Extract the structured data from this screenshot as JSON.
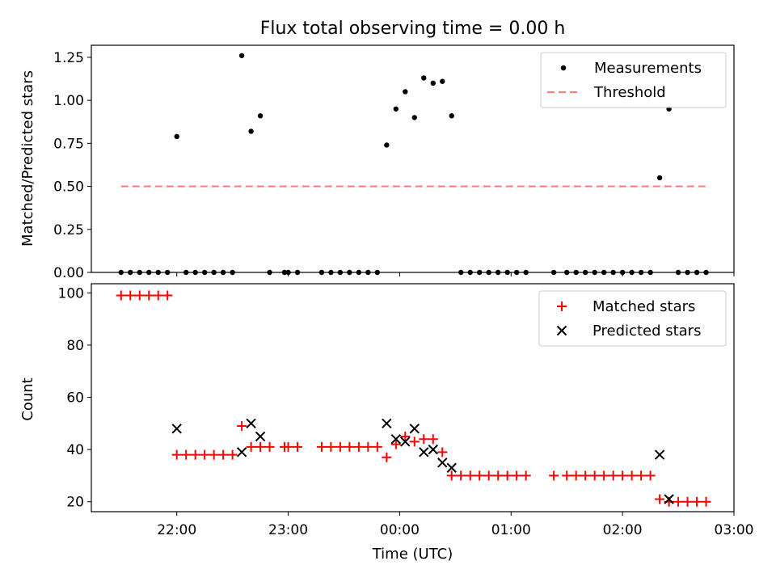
{
  "chart_data": [
    {
      "type": "scatter",
      "title": "Flux total observing time = 0.00 h",
      "ylabel": "Matched/Predicted stars",
      "ylim": [
        0,
        1.32
      ],
      "yticks": [
        0.0,
        0.25,
        0.5,
        0.75,
        1.0,
        1.25
      ],
      "ytick_labels": [
        "0.00",
        "0.25",
        "0.50",
        "0.75",
        "1.00",
        "1.25"
      ],
      "xlim": [
        "21:14",
        "03:00"
      ],
      "legend_position": "top-right",
      "legend": [
        "Measurements",
        "Threshold"
      ],
      "series": [
        {
          "name": "Measurements",
          "marker": "dot",
          "color": "#000000",
          "points": [
            [
              "21:30",
              0
            ],
            [
              "21:35",
              0
            ],
            [
              "21:40",
              0
            ],
            [
              "21:45",
              0
            ],
            [
              "21:50",
              0
            ],
            [
              "21:55",
              0
            ],
            [
              "22:00",
              0.79
            ],
            [
              "22:05",
              0
            ],
            [
              "22:10",
              0
            ],
            [
              "22:15",
              0
            ],
            [
              "22:20",
              0
            ],
            [
              "22:25",
              0
            ],
            [
              "22:30",
              0
            ],
            [
              "22:35",
              1.26
            ],
            [
              "22:40",
              0.82
            ],
            [
              "22:45",
              0.91
            ],
            [
              "22:50",
              0
            ],
            [
              "22:58",
              0
            ],
            [
              "23:00",
              0
            ],
            [
              "23:05",
              0
            ],
            [
              "23:18",
              0
            ],
            [
              "23:23",
              0
            ],
            [
              "23:28",
              0
            ],
            [
              "23:33",
              0
            ],
            [
              "23:38",
              0
            ],
            [
              "23:43",
              0
            ],
            [
              "23:48",
              0
            ],
            [
              "23:53",
              0.74
            ],
            [
              "23:58",
              0.95
            ],
            [
              "00:03",
              1.05
            ],
            [
              "00:08",
              0.9
            ],
            [
              "00:13",
              1.13
            ],
            [
              "00:18",
              1.1
            ],
            [
              "00:23",
              1.11
            ],
            [
              "00:28",
              0.91
            ],
            [
              "00:33",
              0
            ],
            [
              "00:38",
              0
            ],
            [
              "00:43",
              0
            ],
            [
              "00:48",
              0
            ],
            [
              "00:53",
              0
            ],
            [
              "00:58",
              0
            ],
            [
              "01:03",
              0
            ],
            [
              "01:08",
              0
            ],
            [
              "01:23",
              0
            ],
            [
              "01:30",
              0
            ],
            [
              "01:35",
              0
            ],
            [
              "01:40",
              0
            ],
            [
              "01:45",
              0
            ],
            [
              "01:50",
              0
            ],
            [
              "01:55",
              0
            ],
            [
              "02:00",
              0
            ],
            [
              "02:05",
              0
            ],
            [
              "02:10",
              0
            ],
            [
              "02:15",
              0
            ],
            [
              "02:20",
              0.55
            ],
            [
              "02:25",
              0.95
            ],
            [
              "02:30",
              0
            ],
            [
              "02:35",
              0
            ],
            [
              "02:40",
              0
            ],
            [
              "02:45",
              0
            ]
          ]
        },
        {
          "name": "Threshold",
          "marker": "dashed-line",
          "color": "#ff7f7f",
          "points": [
            [
              "21:30",
              0.5
            ],
            [
              "02:45",
              0.5
            ]
          ]
        }
      ]
    },
    {
      "type": "scatter",
      "xlabel": "Time (UTC)",
      "ylabel": "Count",
      "ylim": [
        16.2,
        103.5
      ],
      "yticks": [
        20,
        40,
        60,
        80,
        100
      ],
      "ytick_labels": [
        "20",
        "40",
        "60",
        "80",
        "100"
      ],
      "xlim": [
        "21:14",
        "03:00"
      ],
      "xticks": [
        "22:00",
        "23:00",
        "00:00",
        "01:00",
        "02:00",
        "03:00"
      ],
      "xtick_labels": [
        "22:00",
        "23:00",
        "00:00",
        "01:00",
        "02:00",
        "03:00"
      ],
      "legend_position": "top-right",
      "legend": [
        "Matched stars",
        "Predicted stars"
      ],
      "series": [
        {
          "name": "Matched stars",
          "marker": "plus",
          "color": "#ff0000",
          "points": [
            [
              "21:30",
              99
            ],
            [
              "21:35",
              99
            ],
            [
              "21:40",
              99
            ],
            [
              "21:45",
              99
            ],
            [
              "21:50",
              99
            ],
            [
              "21:55",
              99
            ],
            [
              "22:00",
              38
            ],
            [
              "22:05",
              38
            ],
            [
              "22:10",
              38
            ],
            [
              "22:15",
              38
            ],
            [
              "22:20",
              38
            ],
            [
              "22:25",
              38
            ],
            [
              "22:30",
              38
            ],
            [
              "22:35",
              49
            ],
            [
              "22:40",
              41
            ],
            [
              "22:45",
              41
            ],
            [
              "22:50",
              41
            ],
            [
              "22:58",
              41
            ],
            [
              "23:00",
              41
            ],
            [
              "23:05",
              41
            ],
            [
              "23:18",
              41
            ],
            [
              "23:23",
              41
            ],
            [
              "23:28",
              41
            ],
            [
              "23:33",
              41
            ],
            [
              "23:38",
              41
            ],
            [
              "23:43",
              41
            ],
            [
              "23:48",
              41
            ],
            [
              "23:53",
              37
            ],
            [
              "23:58",
              42
            ],
            [
              "00:03",
              45
            ],
            [
              "00:08",
              43
            ],
            [
              "00:13",
              44
            ],
            [
              "00:18",
              44
            ],
            [
              "00:23",
              39
            ],
            [
              "00:28",
              30
            ],
            [
              "00:33",
              30
            ],
            [
              "00:38",
              30
            ],
            [
              "00:43",
              30
            ],
            [
              "00:48",
              30
            ],
            [
              "00:53",
              30
            ],
            [
              "00:58",
              30
            ],
            [
              "01:03",
              30
            ],
            [
              "01:08",
              30
            ],
            [
              "01:23",
              30
            ],
            [
              "01:30",
              30
            ],
            [
              "01:35",
              30
            ],
            [
              "01:40",
              30
            ],
            [
              "01:45",
              30
            ],
            [
              "01:50",
              30
            ],
            [
              "01:55",
              30
            ],
            [
              "02:00",
              30
            ],
            [
              "02:05",
              30
            ],
            [
              "02:10",
              30
            ],
            [
              "02:15",
              30
            ],
            [
              "02:20",
              21
            ],
            [
              "02:25",
              20
            ],
            [
              "02:30",
              20
            ],
            [
              "02:35",
              20
            ],
            [
              "02:40",
              20
            ],
            [
              "02:45",
              20
            ]
          ]
        },
        {
          "name": "Predicted stars",
          "marker": "x",
          "color": "#000000",
          "points": [
            [
              "22:00",
              48
            ],
            [
              "22:35",
              39
            ],
            [
              "22:40",
              50
            ],
            [
              "22:45",
              45
            ],
            [
              "23:53",
              50
            ],
            [
              "23:58",
              44
            ],
            [
              "00:03",
              43
            ],
            [
              "00:08",
              48
            ],
            [
              "00:13",
              39
            ],
            [
              "00:18",
              40
            ],
            [
              "00:23",
              35
            ],
            [
              "00:28",
              33
            ],
            [
              "02:20",
              38
            ],
            [
              "02:25",
              21
            ]
          ]
        }
      ]
    }
  ]
}
